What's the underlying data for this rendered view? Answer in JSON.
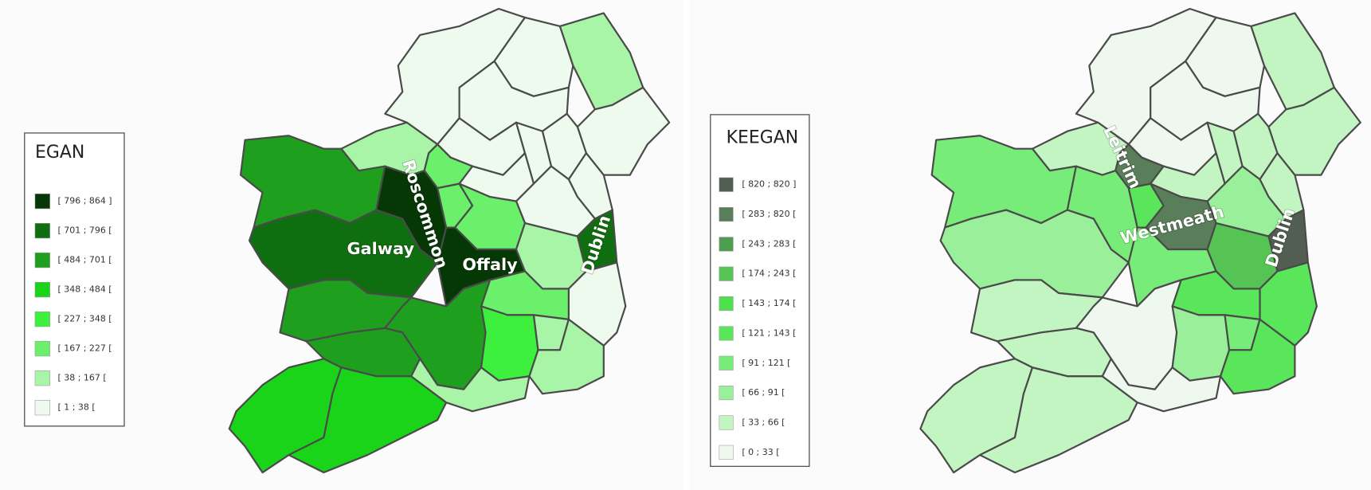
{
  "maps": [
    {
      "legend": {
        "title": "EGAN",
        "items": [
          {
            "label": "[ 796 ; 864 ]",
            "color": "#053805"
          },
          {
            "label": "[ 701 ; 796 [",
            "color": "#0f6e0f"
          },
          {
            "label": "[ 484 ; 701 [",
            "color": "#1ea01e"
          },
          {
            "label": "[ 348 ; 484 [",
            "color": "#19d419"
          },
          {
            "label": "[ 227 ; 348 [",
            "color": "#3ef03e"
          },
          {
            "label": "[ 167 ; 227 [",
            "color": "#6bf06b"
          },
          {
            "label": "[ 38 ; 167 [",
            "color": "#a8f5a8"
          },
          {
            "label": "[ 1 ; 38 [",
            "color": "#eefaee"
          }
        ]
      },
      "labels": [
        "Galway",
        "Roscommon",
        "Offaly",
        "Dublin"
      ]
    },
    {
      "legend": {
        "title": "KEEGAN",
        "items": [
          {
            "label": "[ 820 ; 820 ]",
            "color": "#525e52"
          },
          {
            "label": "[ 283 ; 820 [",
            "color": "#5a7d5a"
          },
          {
            "label": "[ 243 ; 283 [",
            "color": "#4f9e4f"
          },
          {
            "label": "[ 174 ; 243 [",
            "color": "#55c455"
          },
          {
            "label": "[ 143 ; 174 [",
            "color": "#4fe04f"
          },
          {
            "label": "[ 121 ; 143 [",
            "color": "#5ae65a"
          },
          {
            "label": "[ 91 ; 121 [",
            "color": "#78ec78"
          },
          {
            "label": "[ 66 ; 91 [",
            "color": "#9af09a"
          },
          {
            "label": "[ 33 ; 66 [",
            "color": "#c2f5c2"
          },
          {
            "label": "[ 0 ; 33 [",
            "color": "#eef8ee"
          }
        ]
      },
      "labels": [
        "Leitrim",
        "Westmeath",
        "Dublin"
      ]
    }
  ]
}
